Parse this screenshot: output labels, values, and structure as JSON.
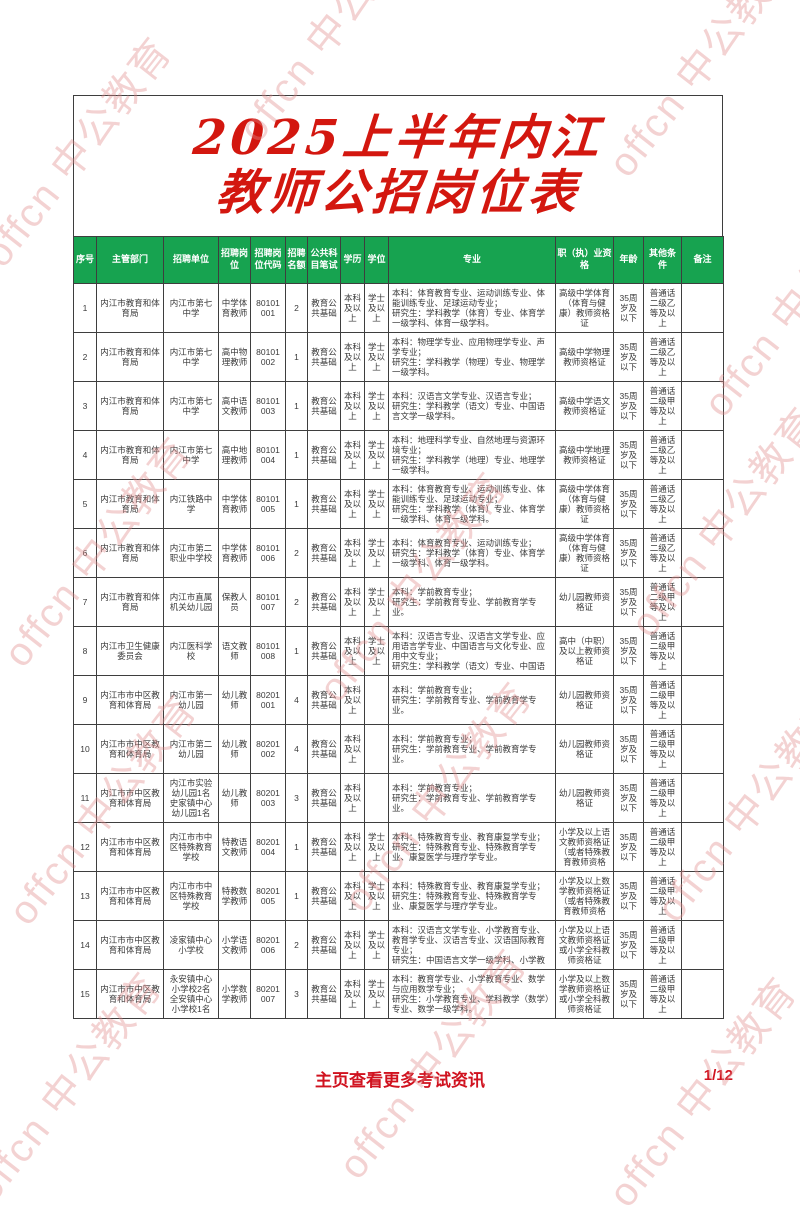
{
  "page": {
    "watermark_text": "offcn 中公教育"
  },
  "title": {
    "line1": "2025上半年内江",
    "line2": "教师公招岗位表"
  },
  "footer": {
    "link_text": "主页查看更多考试资讯",
    "page_number": "1/12"
  },
  "colors": {
    "header_green": "#17a350",
    "title_red": "#d3170f",
    "footer_red": "#d0121f",
    "watermark_pink": "#e28b8b",
    "border_gray": "#3e3e3e",
    "text_gray": "#3a3a3a"
  },
  "table": {
    "headers": [
      "序号",
      "主管部门",
      "招聘单位",
      "招聘岗位",
      "招聘岗位代码",
      "招聘名额",
      "公共科目笔试",
      "学历",
      "学位",
      "专业",
      "职（执）业资格",
      "年龄",
      "其他条件",
      "备注"
    ],
    "rows": [
      {
        "seq": "1",
        "dept": "内江市教育和体育局",
        "unit": "内江市第七中学",
        "post": "中学体育教师",
        "code": "80101\n001",
        "quota": "2",
        "exam": "教育公共基础",
        "edu": "本科及以上",
        "degree": "学士及以上",
        "major": "本科：体育教育专业、运动训练专业、体能训练专业、足球运动专业；\n研究生：学科教学（体育）专业、体育学一级学科、体育一级学科。",
        "qual": "高级中学体育（体育与健康）教师资格证",
        "age": "35周岁及以下",
        "other": "普通话二级乙等及以上",
        "note": ""
      },
      {
        "seq": "2",
        "dept": "内江市教育和体育局",
        "unit": "内江市第七中学",
        "post": "高中物理教师",
        "code": "80101\n002",
        "quota": "1",
        "exam": "教育公共基础",
        "edu": "本科及以上",
        "degree": "学士及以上",
        "major": "本科：物理学专业、应用物理学专业、声学专业；\n研究生：学科教学（物理）专业、物理学一级学科。",
        "qual": "高级中学物理教师资格证",
        "age": "35周岁及以下",
        "other": "普通话二级乙等及以上",
        "note": ""
      },
      {
        "seq": "3",
        "dept": "内江市教育和体育局",
        "unit": "内江市第七中学",
        "post": "高中语文教师",
        "code": "80101\n003",
        "quota": "1",
        "exam": "教育公共基础",
        "edu": "本科及以上",
        "degree": "学士及以上",
        "major": "本科：汉语言文学专业、汉语言专业；\n研究生：学科教学（语文）专业、中国语言文学一级学科。",
        "qual": "高级中学语文教师资格证",
        "age": "35周岁及以下",
        "other": "普通话二级甲等及以上",
        "note": ""
      },
      {
        "seq": "4",
        "dept": "内江市教育和体育局",
        "unit": "内江市第七中学",
        "post": "高中地理教师",
        "code": "80101\n004",
        "quota": "1",
        "exam": "教育公共基础",
        "edu": "本科及以上",
        "degree": "学士及以上",
        "major": "本科：地理科学专业、自然地理与资源环境专业；\n研究生：学科教学（地理）专业、地理学一级学科。",
        "qual": "高级中学地理教师资格证",
        "age": "35周岁及以下",
        "other": "普通话二级乙等及以上",
        "note": ""
      },
      {
        "seq": "5",
        "dept": "内江市教育和体育局",
        "unit": "内江铁路中学",
        "post": "中学体育教师",
        "code": "80101\n005",
        "quota": "1",
        "exam": "教育公共基础",
        "edu": "本科及以上",
        "degree": "学士及以上",
        "major": "本科：体育教育专业、运动训练专业、体能训练专业、足球运动专业；\n研究生：学科教学（体育）专业、体育学一级学科、体育一级学科。",
        "qual": "高级中学体育（体育与健康）教师资格证",
        "age": "35周岁及以下",
        "other": "普通话二级乙等及以上",
        "note": ""
      },
      {
        "seq": "6",
        "dept": "内江市教育和体育局",
        "unit": "内江市第二职业中学校",
        "post": "中学体育教师",
        "code": "80101\n006",
        "quota": "2",
        "exam": "教育公共基础",
        "edu": "本科及以上",
        "degree": "学士及以上",
        "major": "本科：体育教育专业、运动训练专业；\n研究生：学科教学（体育）专业、体育学一级学科、体育一级学科。",
        "qual": "高级中学体育（体育与健康）教师资格证",
        "age": "35周岁及以下",
        "other": "普通话二级乙等及以上",
        "note": ""
      },
      {
        "seq": "7",
        "dept": "内江市教育和体育局",
        "unit": "内江市直属机关幼儿园",
        "post": "保教人员",
        "code": "80101\n007",
        "quota": "2",
        "exam": "教育公共基础",
        "edu": "本科及以上",
        "degree": "学士及以上",
        "major": "本科：学前教育专业；\n研究生：学前教育专业、学前教育学专业。",
        "qual": "幼儿园教师资格证",
        "age": "35周岁及以下",
        "other": "普通话二级甲等及以上",
        "note": ""
      },
      {
        "seq": "8",
        "dept": "内江市卫生健康委员会",
        "unit": "内江医科学校",
        "post": "语文教师",
        "code": "80101\n008",
        "quota": "1",
        "exam": "教育公共基础",
        "edu": "本科及以上",
        "degree": "学士及以上",
        "major": "本科：汉语言专业、汉语言文学专业、应用语言学专业、中国语言与文化专业、应用中文专业；\n研究生：学科教学（语文）专业、中国语",
        "qual": "高中（中职）及以上教师资格证",
        "age": "35周岁及以下",
        "other": "普通话二级甲等及以上",
        "note": ""
      },
      {
        "seq": "9",
        "dept": "内江市市中区教育和体育局",
        "unit": "内江市第一幼儿园",
        "post": "幼儿教师",
        "code": "80201\n001",
        "quota": "4",
        "exam": "教育公共基础",
        "edu": "本科及以上",
        "degree": "",
        "major": "本科：学前教育专业；\n研究生：学前教育专业、学前教育学专业。",
        "qual": "幼儿园教师资格证",
        "age": "35周岁及以下",
        "other": "普通话二级甲等及以上",
        "note": ""
      },
      {
        "seq": "10",
        "dept": "内江市市中区教育和体育局",
        "unit": "内江市第二幼儿园",
        "post": "幼儿教师",
        "code": "80201\n002",
        "quota": "4",
        "exam": "教育公共基础",
        "edu": "本科及以上",
        "degree": "",
        "major": "本科：学前教育专业；\n研究生：学前教育专业、学前教育学专业。",
        "qual": "幼儿园教师资格证",
        "age": "35周岁及以下",
        "other": "普通话二级甲等及以上",
        "note": ""
      },
      {
        "seq": "11",
        "dept": "内江市市中区教育和体育局",
        "unit": "内江市实验幼儿园1名\n史家镇中心幼儿园1名",
        "post": "幼儿教师",
        "code": "80201\n003",
        "quota": "3",
        "exam": "教育公共基础",
        "edu": "本科及以上",
        "degree": "",
        "major": "本科：学前教育专业；\n研究生：学前教育专业、学前教育学专业。",
        "qual": "幼儿园教师资格证",
        "age": "35周岁及以下",
        "other": "普通话二级甲等及以上",
        "note": ""
      },
      {
        "seq": "12",
        "dept": "内江市市中区教育和体育局",
        "unit": "内江市市中区特殊教育学校",
        "post": "特教语文教师",
        "code": "80201\n004",
        "quota": "1",
        "exam": "教育公共基础",
        "edu": "本科及以上",
        "degree": "学士及以上",
        "major": "本科：特殊教育专业、教育康复学专业；\n研究生：特殊教育专业、特殊教育学专业、康复医学与理疗学专业。",
        "qual": "小学及以上语文教师资格证（或者特殊教育教师资格",
        "age": "35周岁及以下",
        "other": "普通话二级甲等及以上",
        "note": ""
      },
      {
        "seq": "13",
        "dept": "内江市市中区教育和体育局",
        "unit": "内江市市中区特殊教育学校",
        "post": "特教数学教师",
        "code": "80201\n005",
        "quota": "1",
        "exam": "教育公共基础",
        "edu": "本科及以上",
        "degree": "学士及以上",
        "major": "本科：特殊教育专业、教育康复学专业；\n研究生：特殊教育专业、特殊教育学专业、康复医学与理疗学专业。",
        "qual": "小学及以上数学教师资格证（或者特殊教育教师资格",
        "age": "35周岁及以下",
        "other": "普通话二级甲等及以上",
        "note": ""
      },
      {
        "seq": "14",
        "dept": "内江市市中区教育和体育局",
        "unit": "凌家镇中心小学校",
        "post": "小学语文教师",
        "code": "80201\n006",
        "quota": "2",
        "exam": "教育公共基础",
        "edu": "本科及以上",
        "degree": "学士及以上",
        "major": "本科：汉语言文学专业、小学教育专业、教育学专业、汉语言专业、汉语国际教育专业；\n研究生：中国语言文学一级学科、小学教",
        "qual": "小学及以上语文教师资格证或小学全科教师资格证",
        "age": "35周岁及以下",
        "other": "普通话二级甲等及以上",
        "note": ""
      },
      {
        "seq": "15",
        "dept": "内江市市中区教育和体育局",
        "unit": "永安镇中心小学校2名\n全安镇中心小学校1名",
        "post": "小学数学教师",
        "code": "80201\n007",
        "quota": "3",
        "exam": "教育公共基础",
        "edu": "本科及以上",
        "degree": "学士及以上",
        "major": "本科：教育学专业、小学教育专业、数学与应用数学专业；\n研究生：小学教育专业、学科教学（数学）专业、数学一级学科。",
        "qual": "小学及以上数学教师资格证或小学全科教师资格证",
        "age": "35周岁及以下",
        "other": "普通话二级甲等及以上",
        "note": ""
      }
    ]
  }
}
